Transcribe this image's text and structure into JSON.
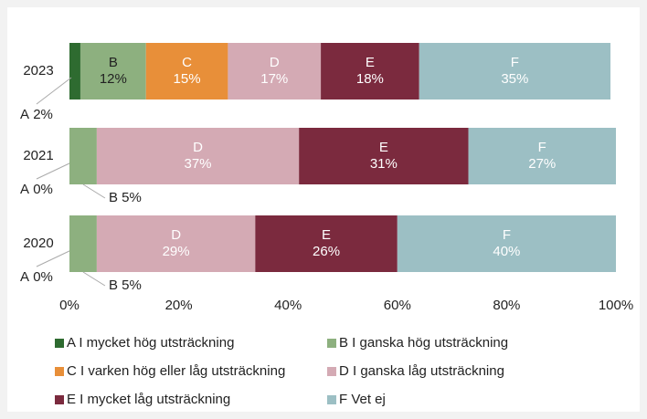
{
  "chart_data": {
    "type": "stacked_barh",
    "categories": [
      "2023",
      "2021",
      "2020"
    ],
    "series": [
      {
        "name": "A I mycket hög utsträckning",
        "label": "A",
        "color": "#2e6b30",
        "values": [
          2,
          0,
          0
        ],
        "value_labels": [
          "2%",
          "0%",
          "0%"
        ]
      },
      {
        "name": "B I ganska hög utsträckning",
        "label": "B",
        "color": "#8db07f",
        "values": [
          12,
          5,
          5
        ],
        "value_labels": [
          "12%",
          "5%",
          "5%"
        ]
      },
      {
        "name": "C I varken hög eller låg utsträckning",
        "label": "C",
        "color": "#e88f39",
        "values": [
          15,
          0,
          0
        ],
        "value_labels": [
          "15%",
          null,
          null
        ]
      },
      {
        "name": "D I ganska låg utsträckning",
        "label": "D",
        "color": "#d4aab4",
        "values": [
          17,
          37,
          29
        ],
        "value_labels": [
          "17%",
          "37%",
          "29%"
        ]
      },
      {
        "name": "E I mycket låg utsträckning",
        "label": "E",
        "color": "#7b2a3e",
        "values": [
          18,
          31,
          26
        ],
        "value_labels": [
          "18%",
          "31%",
          "26%"
        ]
      },
      {
        "name": "F Vet ej",
        "label": "F",
        "color": "#9cbfc4",
        "values": [
          35,
          27,
          40
        ],
        "value_labels": [
          "35%",
          "27%",
          "40%"
        ]
      }
    ],
    "xlim": [
      0,
      100
    ],
    "xticks": [
      {
        "value": 0,
        "label": "0%"
      },
      {
        "value": 20,
        "label": "20%"
      },
      {
        "value": 40,
        "label": "40%"
      },
      {
        "value": 60,
        "label": "60%"
      },
      {
        "value": 80,
        "label": "80%"
      },
      {
        "value": 100,
        "label": "100%"
      }
    ],
    "legend": "bottom"
  }
}
